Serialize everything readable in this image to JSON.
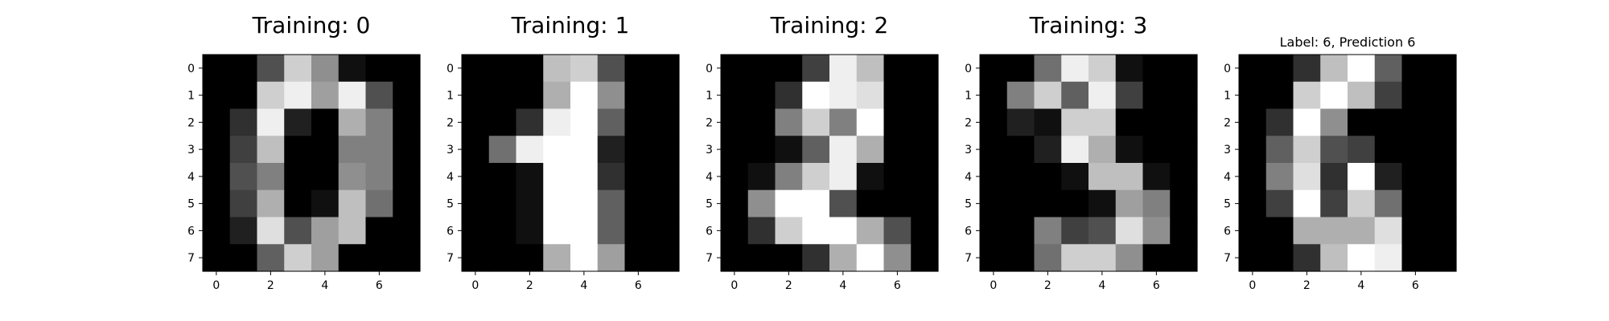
{
  "chart_data": [
    {
      "type": "heatmap",
      "title": "Training: 0",
      "colormap": "gray",
      "vmin": 0,
      "vmax": 16,
      "x_ticks": [
        0,
        2,
        4,
        6
      ],
      "y_ticks": [
        0,
        1,
        2,
        3,
        4,
        5,
        6,
        7
      ],
      "values": [
        [
          0,
          0,
          5,
          13,
          9,
          1,
          0,
          0
        ],
        [
          0,
          0,
          13,
          15,
          10,
          15,
          5,
          0
        ],
        [
          0,
          3,
          15,
          2,
          0,
          11,
          8,
          0
        ],
        [
          0,
          4,
          12,
          0,
          0,
          8,
          8,
          0
        ],
        [
          0,
          5,
          8,
          0,
          0,
          9,
          8,
          0
        ],
        [
          0,
          4,
          11,
          0,
          1,
          12,
          7,
          0
        ],
        [
          0,
          2,
          14,
          5,
          10,
          12,
          0,
          0
        ],
        [
          0,
          0,
          6,
          13,
          10,
          0,
          0,
          0
        ]
      ]
    },
    {
      "type": "heatmap",
      "title": "Training: 1",
      "colormap": "gray",
      "vmin": 0,
      "vmax": 16,
      "x_ticks": [
        0,
        2,
        4,
        6
      ],
      "y_ticks": [
        0,
        1,
        2,
        3,
        4,
        5,
        6,
        7
      ],
      "values": [
        [
          0,
          0,
          0,
          12,
          13,
          5,
          0,
          0
        ],
        [
          0,
          0,
          0,
          11,
          16,
          9,
          0,
          0
        ],
        [
          0,
          0,
          3,
          15,
          16,
          6,
          0,
          0
        ],
        [
          0,
          7,
          15,
          16,
          16,
          2,
          0,
          0
        ],
        [
          0,
          0,
          1,
          16,
          16,
          3,
          0,
          0
        ],
        [
          0,
          0,
          1,
          16,
          16,
          6,
          0,
          0
        ],
        [
          0,
          0,
          1,
          16,
          16,
          6,
          0,
          0
        ],
        [
          0,
          0,
          0,
          11,
          16,
          10,
          0,
          0
        ]
      ]
    },
    {
      "type": "heatmap",
      "title": "Training: 2",
      "colormap": "gray",
      "vmin": 0,
      "vmax": 16,
      "x_ticks": [
        0,
        2,
        4,
        6
      ],
      "y_ticks": [
        0,
        1,
        2,
        3,
        4,
        5,
        6,
        7
      ],
      "values": [
        [
          0,
          0,
          0,
          4,
          15,
          12,
          0,
          0
        ],
        [
          0,
          0,
          3,
          16,
          15,
          14,
          0,
          0
        ],
        [
          0,
          0,
          8,
          13,
          8,
          16,
          0,
          0
        ],
        [
          0,
          0,
          1,
          6,
          15,
          11,
          0,
          0
        ],
        [
          0,
          1,
          8,
          13,
          15,
          1,
          0,
          0
        ],
        [
          0,
          9,
          16,
          16,
          5,
          0,
          0,
          0
        ],
        [
          0,
          3,
          13,
          16,
          16,
          11,
          5,
          0
        ],
        [
          0,
          0,
          0,
          3,
          11,
          16,
          9,
          0
        ]
      ]
    },
    {
      "type": "heatmap",
      "title": "Training: 3",
      "colormap": "gray",
      "vmin": 0,
      "vmax": 16,
      "x_ticks": [
        0,
        2,
        4,
        6
      ],
      "y_ticks": [
        0,
        1,
        2,
        3,
        4,
        5,
        6,
        7
      ],
      "values": [
        [
          0,
          0,
          7,
          15,
          13,
          1,
          0,
          0
        ],
        [
          0,
          8,
          13,
          6,
          15,
          4,
          0,
          0
        ],
        [
          0,
          2,
          1,
          13,
          13,
          0,
          0,
          0
        ],
        [
          0,
          0,
          2,
          15,
          11,
          1,
          0,
          0
        ],
        [
          0,
          0,
          0,
          1,
          12,
          12,
          1,
          0
        ],
        [
          0,
          0,
          0,
          0,
          1,
          10,
          8,
          0
        ],
        [
          0,
          0,
          8,
          4,
          5,
          14,
          9,
          0
        ],
        [
          0,
          0,
          7,
          13,
          13,
          9,
          0,
          0
        ]
      ]
    },
    {
      "type": "heatmap",
      "title": "Label: 6, Prediction 6",
      "colormap": "gray",
      "vmin": 0,
      "vmax": 16,
      "x_ticks": [
        0,
        2,
        4,
        6
      ],
      "y_ticks": [
        0,
        1,
        2,
        3,
        4,
        5,
        6,
        7
      ],
      "values": [
        [
          0,
          0,
          3,
          12,
          16,
          6,
          0,
          0
        ],
        [
          0,
          0,
          13,
          16,
          12,
          4,
          0,
          0
        ],
        [
          0,
          3,
          16,
          9,
          0,
          0,
          0,
          0
        ],
        [
          0,
          6,
          13,
          5,
          4,
          0,
          0,
          0
        ],
        [
          0,
          8,
          14,
          3,
          16,
          2,
          0,
          0
        ],
        [
          0,
          4,
          16,
          4,
          13,
          7,
          0,
          0
        ],
        [
          0,
          0,
          11,
          11,
          11,
          14,
          0,
          0
        ],
        [
          0,
          0,
          3,
          12,
          16,
          15,
          0,
          0
        ]
      ]
    }
  ]
}
